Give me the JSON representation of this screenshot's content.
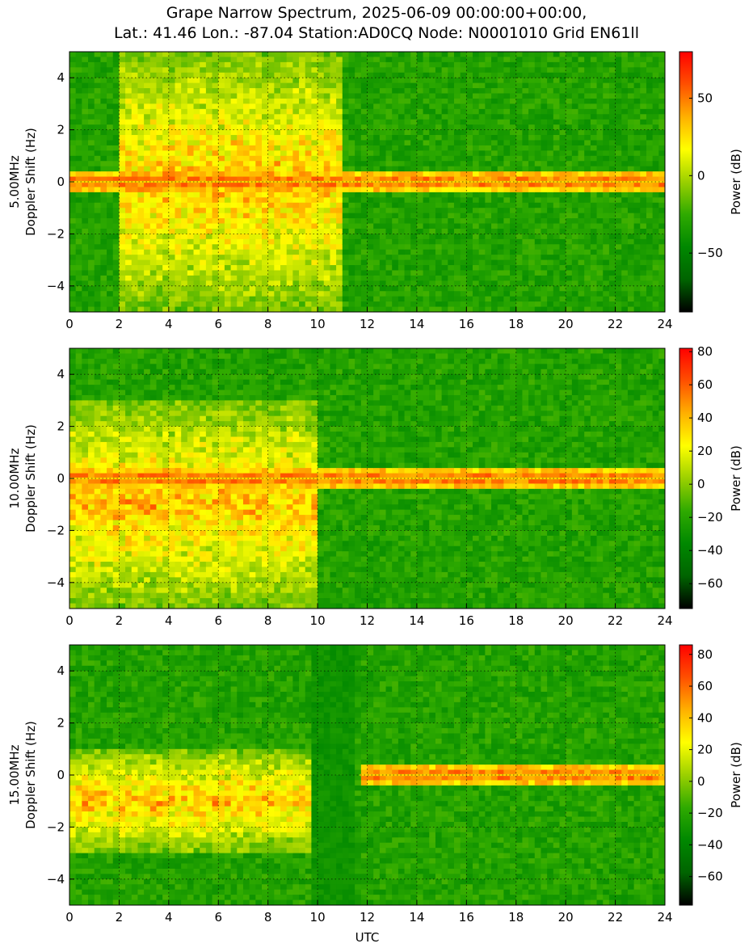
{
  "title_line1": "Grape Narrow Spectrum, 2025-06-09 00:00:00+00:00,",
  "title_line2": "Lat.: 41.46 Lon.: -87.04 Station:AD0CQ Node: N0001010 Grid EN61ll",
  "colormap": [
    "#000000",
    "#006400",
    "#008800",
    "#2faa00",
    "#9bd000",
    "#ffff00",
    "#ffb000",
    "#ff5000",
    "#ff0000"
  ],
  "chart_data": [
    {
      "type": "heatmap",
      "ylabel_line1": "5.00MHz",
      "ylabel_line2": "Doppler Shift (Hz)",
      "xlim": [
        0,
        24
      ],
      "ylim": [
        -5,
        5
      ],
      "xticks": [
        0,
        2,
        4,
        6,
        8,
        10,
        12,
        14,
        16,
        18,
        20,
        22,
        24
      ],
      "yticks": [
        -4,
        -2,
        0,
        2,
        4
      ],
      "grid": true,
      "colorbar_label": "Power (dB)",
      "colorbar_range": [
        -88,
        80
      ],
      "colorbar_ticks": [
        -50,
        0,
        50
      ],
      "features": [
        {
          "description": "strong broadband return",
          "x_range": [
            2,
            11
          ],
          "y_range": [
            -5,
            5
          ]
        },
        {
          "description": "carrier line",
          "x_range": [
            0,
            24
          ],
          "y": 0
        }
      ]
    },
    {
      "type": "heatmap",
      "ylabel_line1": "10.00MHz",
      "ylabel_line2": "Doppler Shift (Hz)",
      "xlim": [
        0,
        24
      ],
      "ylim": [
        -5,
        5
      ],
      "xticks": [
        0,
        2,
        4,
        6,
        8,
        10,
        12,
        14,
        16,
        18,
        20,
        22,
        24
      ],
      "yticks": [
        -4,
        -2,
        0,
        2,
        4
      ],
      "grid": true,
      "colorbar_label": "Power (dB)",
      "colorbar_range": [
        -75,
        82
      ],
      "colorbar_ticks": [
        -60,
        -40,
        -20,
        0,
        20,
        40,
        60,
        80
      ],
      "features": [
        {
          "description": "broad return",
          "x_range": [
            0,
            10
          ],
          "y_range": [
            -5,
            3
          ]
        },
        {
          "description": "carrier line",
          "x_range": [
            0,
            24
          ],
          "y": 0
        }
      ]
    },
    {
      "type": "heatmap",
      "ylabel_line1": "15.00MHz",
      "ylabel_line2": "Doppler Shift (Hz)",
      "xlabel": "UTC",
      "xlim": [
        0,
        24
      ],
      "ylim": [
        -5,
        5
      ],
      "xticks": [
        0,
        2,
        4,
        6,
        8,
        10,
        12,
        14,
        16,
        18,
        20,
        22,
        24
      ],
      "yticks": [
        -4,
        -2,
        0,
        2,
        4
      ],
      "grid": true,
      "colorbar_label": "Power (dB)",
      "colorbar_range": [
        -78,
        86
      ],
      "colorbar_ticks": [
        -60,
        -40,
        -20,
        0,
        20,
        40,
        60,
        80
      ],
      "features": [
        {
          "description": "return",
          "x_range": [
            0,
            10
          ],
          "y_range": [
            -3,
            1
          ]
        },
        {
          "description": "gap",
          "x_range": [
            9.8,
            11.5
          ]
        },
        {
          "description": "carrier line",
          "x_range": [
            11.7,
            24
          ],
          "y": 0
        }
      ]
    }
  ]
}
